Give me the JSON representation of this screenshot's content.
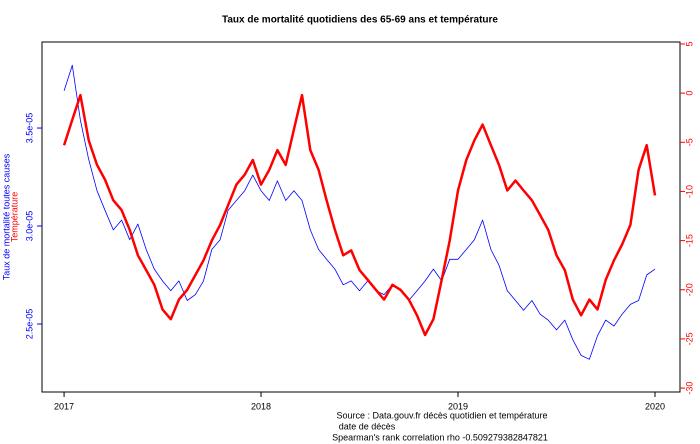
{
  "chart_data": {
    "type": "line",
    "title": "Taux de mortalité quotidiens des 65-69 ans et température",
    "x_label": "date de décès",
    "y_label": "Taux de mortalité toutes causes",
    "y2_label": "Température",
    "source": "Source : Data.gouv.fr décès quotidien et température",
    "annotation": "Spearman's rank correlation rho -0.509279382847821",
    "x": [
      2017,
      2017.042,
      2017.083,
      2017.125,
      2017.167,
      2017.208,
      2017.25,
      2017.292,
      2017.333,
      2017.375,
      2017.417,
      2017.458,
      2017.5,
      2017.542,
      2017.583,
      2017.625,
      2017.667,
      2017.708,
      2017.75,
      2017.792,
      2017.833,
      2017.875,
      2017.917,
      2017.958,
      2018,
      2018.042,
      2018.083,
      2018.125,
      2018.167,
      2018.208,
      2018.25,
      2018.292,
      2018.333,
      2018.375,
      2018.417,
      2018.458,
      2018.5,
      2018.542,
      2018.583,
      2018.625,
      2018.667,
      2018.708,
      2018.75,
      2018.792,
      2018.833,
      2018.875,
      2018.917,
      2018.958,
      2019,
      2019.042,
      2019.083,
      2019.125,
      2019.167,
      2019.208,
      2019.25,
      2019.292,
      2019.333,
      2019.375,
      2019.417,
      2019.458,
      2019.5,
      2019.542,
      2019.583,
      2019.625,
      2019.667,
      2019.708,
      2019.75,
      2019.792,
      2019.833,
      2019.875,
      2019.917,
      2019.958,
      2020
    ],
    "series": [
      {
        "name": "Taux de mortalité toutes causes",
        "color": "#0000ff",
        "width": 0.8,
        "axis": "y",
        "values": [
          3.69e-05,
          3.82e-05,
          3.54e-05,
          3.34e-05,
          3.18e-05,
          3.08e-05,
          2.98e-05,
          3.03e-05,
          2.93e-05,
          3.01e-05,
          2.88e-05,
          2.78e-05,
          2.72e-05,
          2.67e-05,
          2.72e-05,
          2.62e-05,
          2.65e-05,
          2.72e-05,
          2.88e-05,
          2.93e-05,
          3.08e-05,
          3.13e-05,
          3.18e-05,
          3.26e-05,
          3.18e-05,
          3.13e-05,
          3.23e-05,
          3.13e-05,
          3.18e-05,
          3.13e-05,
          2.98e-05,
          2.88e-05,
          2.83e-05,
          2.78e-05,
          2.7e-05,
          2.72e-05,
          2.67e-05,
          2.72e-05,
          2.67e-05,
          2.65e-05,
          2.7e-05,
          2.67e-05,
          2.62e-05,
          2.67e-05,
          2.72e-05,
          2.78e-05,
          2.72e-05,
          2.83e-05,
          2.83e-05,
          2.88e-05,
          2.93e-05,
          3.03e-05,
          2.88e-05,
          2.8e-05,
          2.67e-05,
          2.62e-05,
          2.57e-05,
          2.62e-05,
          2.55e-05,
          2.52e-05,
          2.47e-05,
          2.52e-05,
          2.42e-05,
          2.34e-05,
          2.32e-05,
          2.44e-05,
          2.52e-05,
          2.49e-05,
          2.55e-05,
          2.6e-05,
          2.62e-05,
          2.75e-05,
          2.78e-05
        ]
      },
      {
        "name": "Température",
        "color": "#ff0000",
        "width": 2.5,
        "axis": "y2",
        "values": [
          -5.3,
          -2.7,
          -0.2,
          -4.8,
          -7.3,
          -8.8,
          -10.9,
          -11.9,
          -13.9,
          -16.5,
          -18,
          -19.5,
          -22,
          -23,
          -21,
          -20,
          -18.5,
          -17,
          -15,
          -13.4,
          -11.4,
          -9.3,
          -8.3,
          -6.8,
          -9.3,
          -7.8,
          -5.8,
          -7.3,
          -3.7,
          -0.2,
          -5.8,
          -7.8,
          -10.9,
          -13.9,
          -16.5,
          -16,
          -18,
          -19,
          -20,
          -21,
          -19.5,
          -20,
          -21,
          -22.6,
          -24.6,
          -23,
          -19,
          -15,
          -9.9,
          -6.8,
          -4.8,
          -3.2,
          -5.3,
          -7.3,
          -9.9,
          -8.9,
          -9.9,
          -10.9,
          -12.4,
          -13.9,
          -16.5,
          -18,
          -21,
          -22.6,
          -21,
          -22,
          -19,
          -17,
          -15.4,
          -13.4,
          -7.8,
          -5.3,
          -10.4
        ]
      }
    ],
    "xlim": [
      2016.888,
      2020.127
    ],
    "xticks": [
      2017,
      2018,
      2019,
      2020
    ],
    "ylim": [
      2.153e-05,
      3.939e-05
    ],
    "yticks": [
      {
        "value": 2.5e-05,
        "label": "2.5e-05"
      },
      {
        "value": 3e-05,
        "label": "3.0e-05"
      },
      {
        "value": 3.5e-05,
        "label": "3.5e-05"
      }
    ],
    "y2lim": [
      -30.4,
      5.2
    ],
    "y2ticks": [
      -30,
      -25,
      -20,
      -15,
      -10,
      -5,
      0,
      5
    ]
  }
}
